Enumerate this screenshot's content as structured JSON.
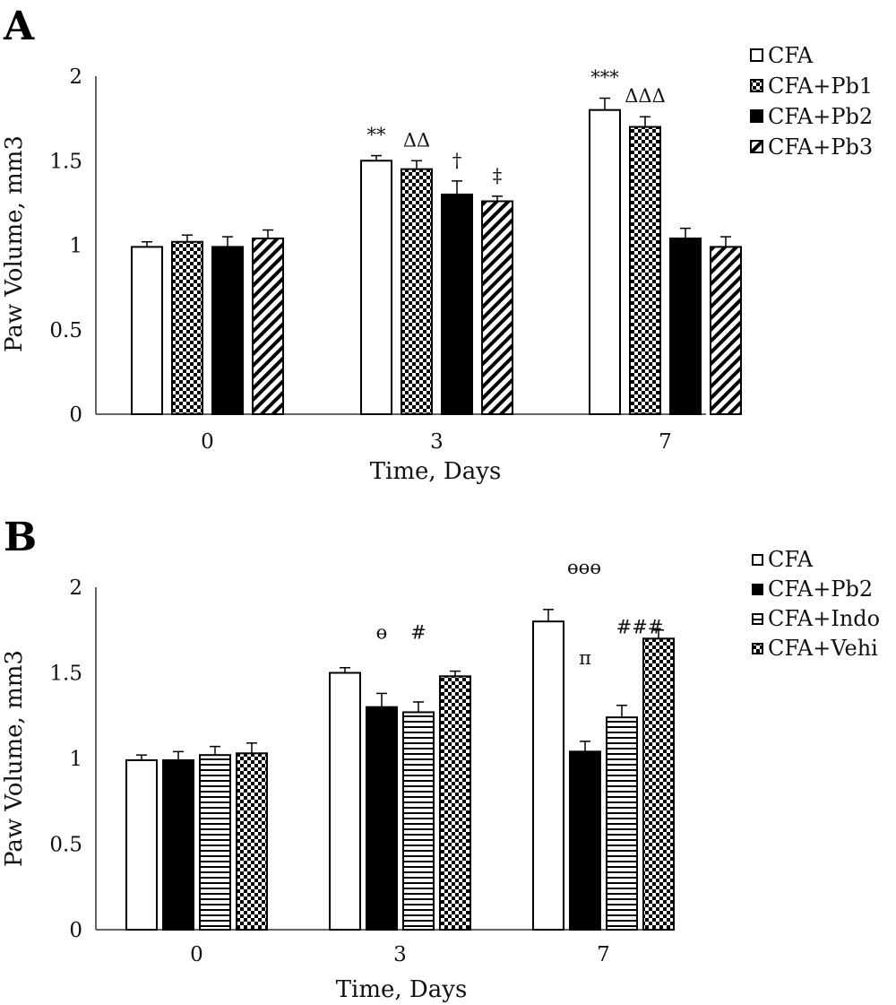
{
  "chart_data": [
    {
      "panel": "A",
      "type": "bar",
      "xlabel": "Time, Days",
      "ylabel": "Paw Volume, mm3",
      "ylim": [
        0,
        2
      ],
      "yticks": [
        "0",
        "0.5",
        "1",
        "1.5",
        "2"
      ],
      "categories": [
        "0",
        "3",
        "7"
      ],
      "legend_position": "top-right",
      "series": [
        {
          "name": "CFA",
          "pattern": "white",
          "values": [
            0.99,
            1.5,
            1.8
          ],
          "errors": [
            0.03,
            0.03,
            0.07
          ]
        },
        {
          "name": "CFA+Pb1",
          "pattern": "checker",
          "values": [
            1.02,
            1.45,
            1.7
          ],
          "errors": [
            0.04,
            0.05,
            0.06
          ]
        },
        {
          "name": "CFA+Pb2",
          "pattern": "black",
          "values": [
            0.99,
            1.3,
            1.04
          ],
          "errors": [
            0.06,
            0.08,
            0.06
          ]
        },
        {
          "name": "CFA+Pb3",
          "pattern": "diagonal",
          "values": [
            1.04,
            1.26,
            0.99
          ],
          "errors": [
            0.05,
            0.03,
            0.06
          ]
        }
      ],
      "annotations": [
        {
          "text": "**",
          "category": 1,
          "series": 0
        },
        {
          "text": "ΔΔ",
          "category": 1,
          "series": 1
        },
        {
          "text": "†",
          "category": 1,
          "series": 2
        },
        {
          "text": "‡",
          "category": 1,
          "series": 3
        },
        {
          "text": "***",
          "category": 2,
          "series": 0
        },
        {
          "text": "ΔΔΔ",
          "category": 2,
          "series": 1
        }
      ]
    },
    {
      "panel": "B",
      "type": "bar",
      "xlabel": "Time, Days",
      "ylabel": "Paw Volume, mm3",
      "ylim": [
        0,
        2
      ],
      "yticks": [
        "0",
        "0.5",
        "1",
        "1.5",
        "2"
      ],
      "categories": [
        "0",
        "3",
        "7"
      ],
      "legend_position": "top-right",
      "series": [
        {
          "name": "CFA",
          "pattern": "white",
          "values": [
            0.99,
            1.5,
            1.8
          ],
          "errors": [
            0.03,
            0.03,
            0.07
          ]
        },
        {
          "name": "CFA+Pb2",
          "pattern": "black",
          "values": [
            0.99,
            1.3,
            1.04
          ],
          "errors": [
            0.05,
            0.08,
            0.06
          ]
        },
        {
          "name": "CFA+Indo",
          "pattern": "horizontal",
          "values": [
            1.02,
            1.27,
            1.24
          ],
          "errors": [
            0.05,
            0.06,
            0.07
          ]
        },
        {
          "name": "CFA+Vehi",
          "pattern": "checker",
          "values": [
            1.03,
            1.48,
            1.7
          ],
          "errors": [
            0.06,
            0.03,
            0.05
          ]
        }
      ],
      "annotations": [
        {
          "text": "ɵ",
          "category": 1,
          "series": 1
        },
        {
          "text": "#",
          "category": 1,
          "series": 2
        },
        {
          "text": "ɵɵɵ",
          "category": 2,
          "series": 0
        },
        {
          "text": "π",
          "category": 2,
          "series": 1
        },
        {
          "text": "###",
          "category": 2,
          "series": 2
        }
      ]
    }
  ]
}
